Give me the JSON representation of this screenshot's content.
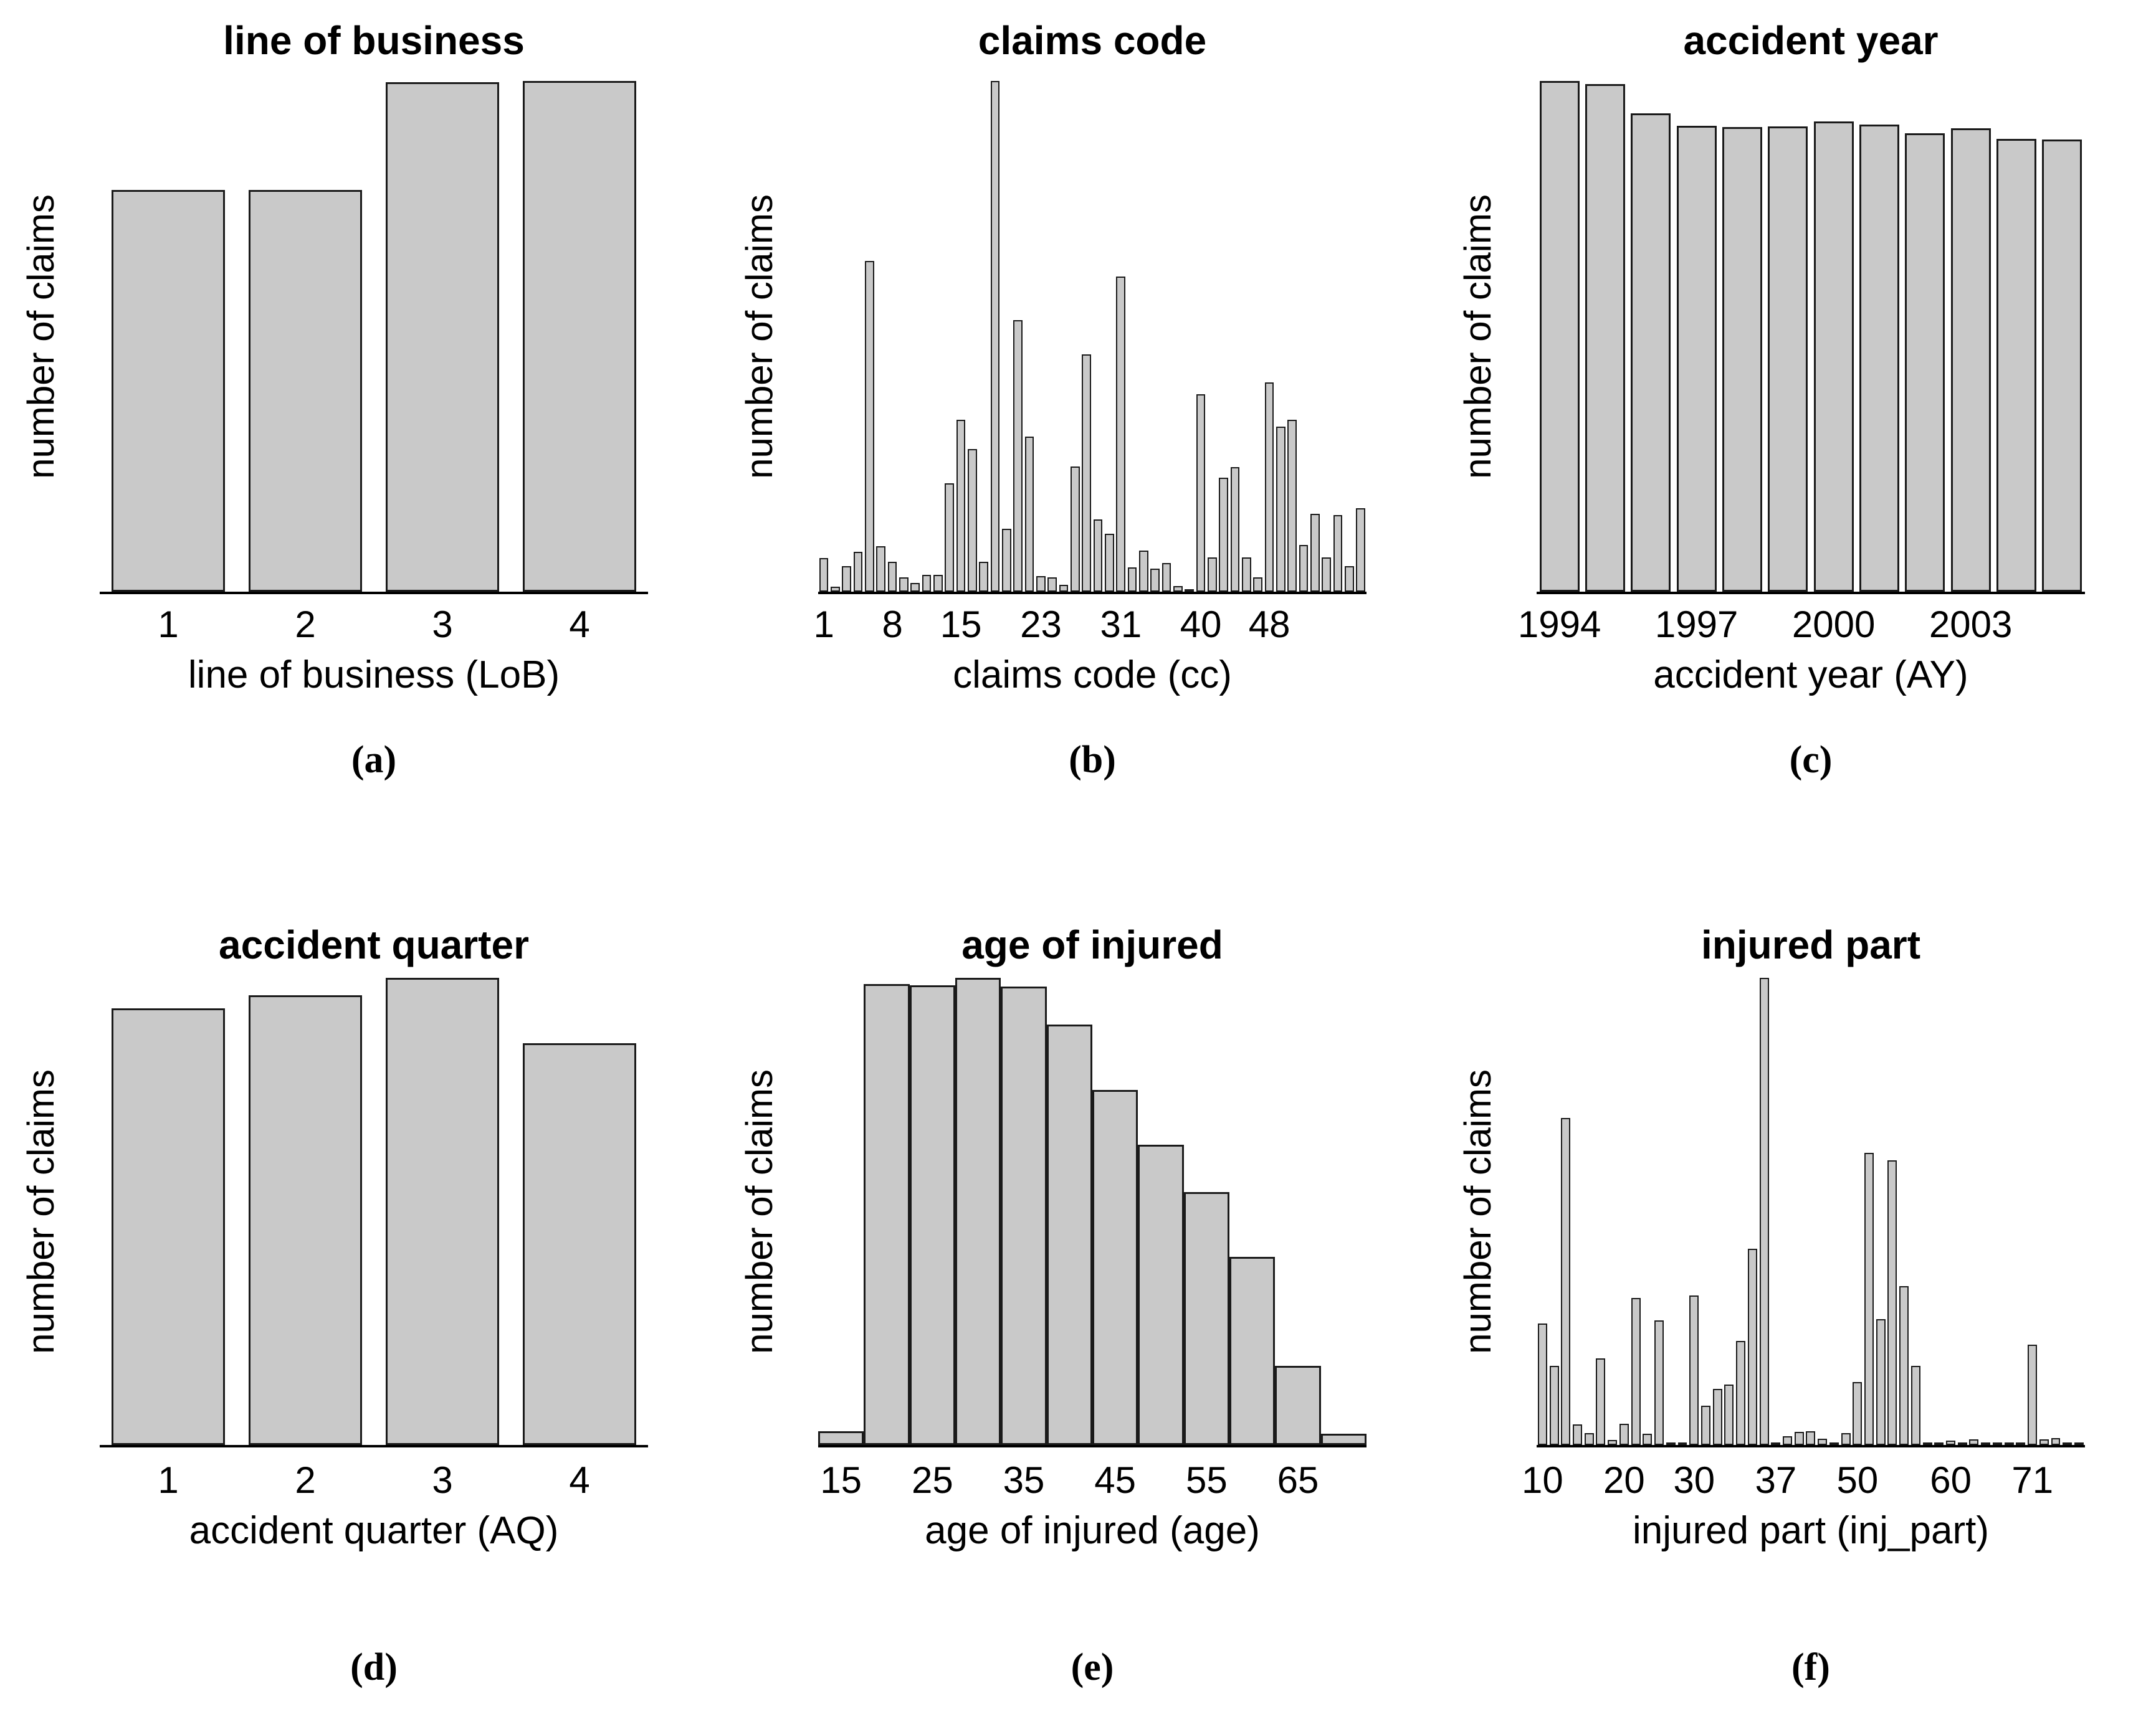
{
  "ylabel_shared": "number of claims",
  "style": {
    "background": "#ffffff",
    "bar_fill": "#c9c9c9",
    "bar_stroke": "#1a1a1a",
    "text_color": "#000000"
  },
  "chart_data": [
    {
      "panel": "a",
      "type": "bar",
      "title": "line of business",
      "xlabel": "line of business (LoB)",
      "ylabel": "number of claims",
      "caption": "(a)",
      "y_axis_note": "no numeric y scale shown; values are relative bar heights (max = 1)",
      "categories": [
        "1",
        "2",
        "3",
        "4"
      ],
      "values": [
        0.787,
        0.786,
        0.998,
        1.0
      ],
      "ticks": [
        {
          "bar": 1,
          "label": "1"
        },
        {
          "bar": 2,
          "label": "2"
        },
        {
          "bar": 3,
          "label": "3"
        },
        {
          "bar": 4,
          "label": "4"
        }
      ],
      "bar_frac": 0.83
    },
    {
      "panel": "b",
      "type": "bar",
      "title": "claims code",
      "xlabel": "claims code (cc)",
      "ylabel": "number of claims",
      "caption": "(b)",
      "y_axis_note": "no numeric y scale shown; values are relative bar heights (max = 1)",
      "values": [
        0.066,
        0.01,
        0.05,
        0.078,
        0.648,
        0.089,
        0.058,
        0.028,
        0.017,
        0.033,
        0.033,
        0.212,
        0.337,
        0.279,
        0.058,
        1.0,
        0.123,
        0.532,
        0.304,
        0.031,
        0.028,
        0.014,
        0.245,
        0.465,
        0.142,
        0.114,
        0.617,
        0.047,
        0.081,
        0.045,
        0.056,
        0.011,
        0.004,
        0.386,
        0.067,
        0.223,
        0.244,
        0.067,
        0.028,
        0.41,
        0.323,
        0.337,
        0.092,
        0.153,
        0.067,
        0.15,
        0.05,
        0.163
      ],
      "ticks": [
        {
          "bar": 1,
          "label": "1"
        },
        {
          "bar": 7,
          "label": "8"
        },
        {
          "bar": 13,
          "label": "15"
        },
        {
          "bar": 20,
          "label": "23"
        },
        {
          "bar": 27,
          "label": "31"
        },
        {
          "bar": 34,
          "label": "40"
        },
        {
          "bar": 40,
          "label": "48"
        }
      ],
      "bar_frac": 0.8
    },
    {
      "panel": "c",
      "type": "bar",
      "title": "accident year",
      "xlabel": "accident year (AY)",
      "ylabel": "number of claims",
      "caption": "(c)",
      "y_axis_note": "no numeric y scale shown; values are relative bar heights (max = 1)",
      "categories": [
        "1994",
        "1995",
        "1996",
        "1997",
        "1998",
        "1999",
        "2000",
        "2001",
        "2002",
        "2003",
        "2004",
        "2005"
      ],
      "values": [
        1.0,
        0.994,
        0.936,
        0.912,
        0.91,
        0.911,
        0.921,
        0.915,
        0.898,
        0.907,
        0.886,
        0.885
      ],
      "ticks": [
        {
          "bar": 1,
          "label": "1994"
        },
        {
          "bar": 4,
          "label": "1997"
        },
        {
          "bar": 7,
          "label": "2000"
        },
        {
          "bar": 10,
          "label": "2003"
        }
      ],
      "bar_frac": 0.87
    },
    {
      "panel": "d",
      "type": "bar",
      "title": "accident quarter",
      "xlabel": "accident quarter (AQ)",
      "ylabel": "number of claims",
      "caption": "(d)",
      "y_axis_note": "no numeric y scale shown; values are relative bar heights (max = 1)",
      "categories": [
        "1",
        "2",
        "3",
        "4"
      ],
      "values": [
        0.935,
        0.963,
        1.0,
        0.86
      ],
      "ticks": [
        {
          "bar": 1,
          "label": "1"
        },
        {
          "bar": 2,
          "label": "2"
        },
        {
          "bar": 3,
          "label": "3"
        },
        {
          "bar": 4,
          "label": "4"
        }
      ],
      "bar_frac": 0.83
    },
    {
      "panel": "e",
      "type": "histogram",
      "title": "age of injured",
      "xlabel": "age of injured (age)",
      "ylabel": "number of claims",
      "caption": "(e)",
      "y_axis_note": "no numeric y scale shown; values are relative bar heights (max = 1)",
      "bin_centers": [
        15,
        20,
        25,
        30,
        35,
        40,
        45,
        50,
        55,
        60,
        65,
        70
      ],
      "bin_width": 5,
      "values": [
        0.029,
        0.987,
        0.984,
        1.0,
        0.981,
        0.9,
        0.76,
        0.643,
        0.541,
        0.403,
        0.17,
        0.024
      ],
      "ticks": [
        {
          "bar": 1,
          "label": "15"
        },
        {
          "bar": 3,
          "label": "25"
        },
        {
          "bar": 5,
          "label": "35"
        },
        {
          "bar": 7,
          "label": "45"
        },
        {
          "bar": 9,
          "label": "55"
        },
        {
          "bar": 11,
          "label": "65"
        }
      ],
      "bar_frac": 1.0
    },
    {
      "panel": "f",
      "type": "bar",
      "title": "injured part",
      "xlabel": "injured part (inj_part)",
      "ylabel": "number of claims",
      "caption": "(f)",
      "y_axis_note": "no numeric y scale shown; values are relative bar heights (max = 1)",
      "values": [
        0.26,
        0.17,
        0.7,
        0.044,
        0.026,
        0.186,
        0.011,
        0.046,
        0.315,
        0.024,
        0.267,
        0.004,
        0.004,
        0.32,
        0.084,
        0.12,
        0.13,
        0.223,
        0.42,
        1.0,
        0.004,
        0.019,
        0.028,
        0.03,
        0.013,
        0.004,
        0.025,
        0.135,
        0.625,
        0.27,
        0.61,
        0.34,
        0.17,
        0.004,
        0.004,
        0.01,
        0.004,
        0.012,
        0.004,
        0.004,
        0.004,
        0.004,
        0.215,
        0.012,
        0.015,
        0.004,
        0.004
      ],
      "ticks": [
        {
          "bar": 1,
          "label": "10"
        },
        {
          "bar": 8,
          "label": "20"
        },
        {
          "bar": 14,
          "label": "30"
        },
        {
          "bar": 21,
          "label": "37"
        },
        {
          "bar": 28,
          "label": "50"
        },
        {
          "bar": 36,
          "label": "60"
        },
        {
          "bar": 43,
          "label": "71"
        }
      ],
      "bar_frac": 0.8
    }
  ]
}
